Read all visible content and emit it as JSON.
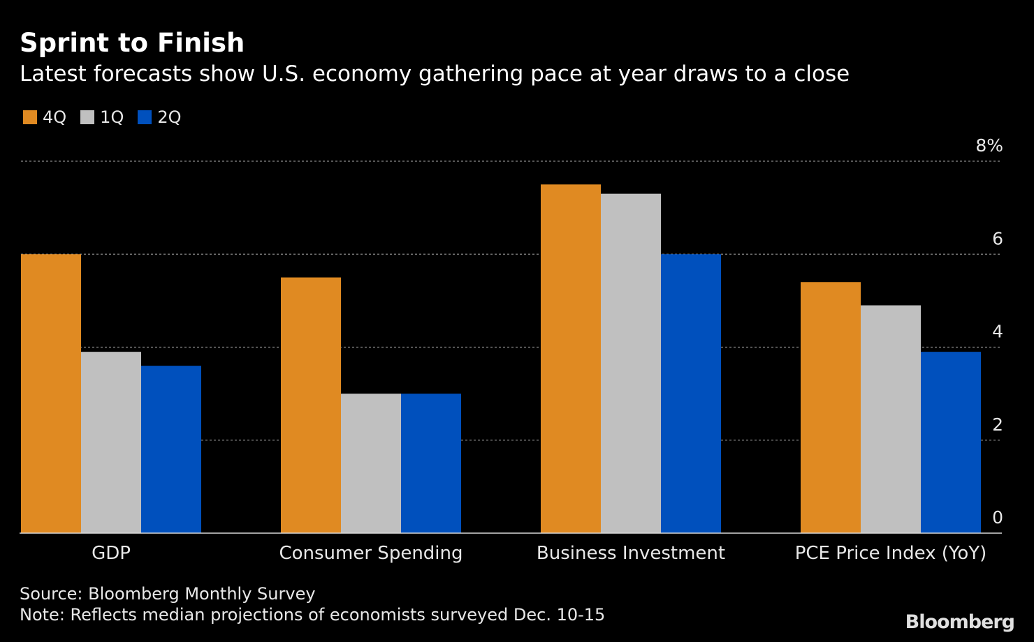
{
  "header": {
    "title": "Sprint to Finish",
    "subtitle": "Latest forecasts show U.S. economy gathering pace at year draws to a close"
  },
  "legend": [
    {
      "label": "4Q",
      "color": "#e08a22"
    },
    {
      "label": "1Q",
      "color": "#c0c0c0"
    },
    {
      "label": "2Q",
      "color": "#0050bd"
    }
  ],
  "chart_data": {
    "type": "bar",
    "categories": [
      "GDP",
      "Consumer Spending",
      "Business Investment",
      "PCE Price Index (YoY)"
    ],
    "series": [
      {
        "name": "4Q",
        "color": "#e08a22",
        "values": [
          6.0,
          5.5,
          7.5,
          5.4
        ]
      },
      {
        "name": "1Q",
        "color": "#c0c0c0",
        "values": [
          3.9,
          3.0,
          7.3,
          4.9
        ]
      },
      {
        "name": "2Q",
        "color": "#0050bd",
        "values": [
          3.6,
          3.0,
          6.0,
          3.9
        ]
      }
    ],
    "ylim": [
      0,
      8
    ],
    "yticks": [
      "0",
      "2",
      "4",
      "6",
      "8%"
    ],
    "ytick_values": [
      0,
      2,
      4,
      6,
      8
    ],
    "y_axis_side": "right",
    "grid": "dotted horizontal",
    "legend_position": "top-left"
  },
  "footer": {
    "source": "Source: Bloomberg Monthly Survey",
    "note": "Note: Reflects median projections of economists surveyed Dec. 10-15",
    "brand": "Bloomberg"
  }
}
